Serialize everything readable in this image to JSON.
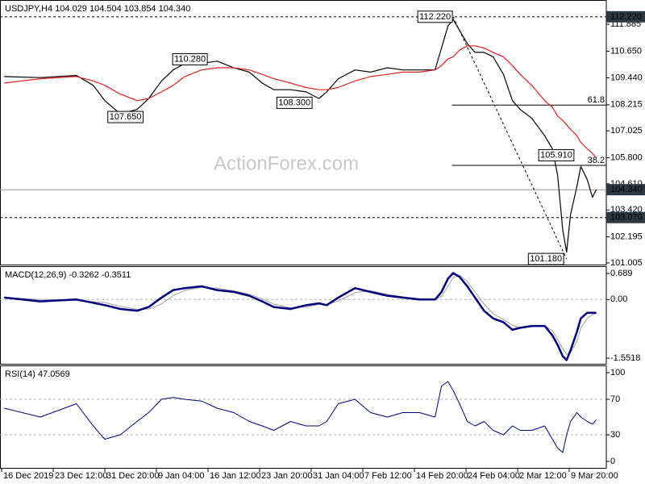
{
  "watermark": "ActionForex.com",
  "chart_data": [
    {
      "type": "line",
      "title": "USDJPY,H4 104.029 104.504 103.854 104.340",
      "x": [
        2,
        30,
        58,
        71,
        80,
        92,
        105,
        114,
        124,
        133,
        142,
        155,
        167,
        180,
        192,
        202,
        211,
        224,
        236,
        246,
        252,
        261,
        274,
        286,
        299,
        311,
        324,
        336,
        341,
        346,
        350,
        355,
        361,
        367,
        374,
        381,
        389,
        396,
        402,
        411,
        421,
        427,
        431,
        435,
        438,
        441,
        446,
        449,
        454,
        458,
        461
      ],
      "series": [
        {
          "color": "#000000",
          "line_width": 1.2,
          "values": [
            109.5,
            109.45,
            109.55,
            109.1,
            108.4,
            107.8,
            108.0,
            108.5,
            109.3,
            109.8,
            110.1,
            110.1,
            110.2,
            109.9,
            109.7,
            109.2,
            108.9,
            108.9,
            108.8,
            108.5,
            108.8,
            109.4,
            109.8,
            109.7,
            109.9,
            109.8,
            109.8,
            109.8,
            110.8,
            111.8,
            112.1,
            111.6,
            111.0,
            110.6,
            110.6,
            110.4,
            109.6,
            108.4,
            108.0,
            107.6,
            106.8,
            106.2,
            105.0,
            102.5,
            101.5,
            103.2,
            104.5,
            105.4,
            104.8,
            104.0,
            104.34
          ]
        },
        {
          "color": "#e02020",
          "line_width": 1.2,
          "values": [
            109.2,
            109.4,
            109.5,
            109.3,
            109.1,
            108.7,
            108.4,
            108.5,
            108.8,
            109.1,
            109.5,
            109.8,
            109.9,
            109.9,
            109.8,
            109.6,
            109.4,
            109.2,
            109.0,
            108.9,
            108.9,
            109.0,
            109.3,
            109.5,
            109.6,
            109.7,
            109.7,
            109.8,
            110.0,
            110.3,
            110.4,
            110.7,
            110.9,
            110.9,
            110.8,
            110.6,
            110.4,
            110.0,
            109.6,
            109.1,
            108.4,
            108.1,
            107.7,
            107.5,
            107.3,
            107.1,
            106.8,
            106.5,
            106.2,
            106.0,
            105.8
          ]
        }
      ],
      "xlim": [
        -1.25,
        468.75
      ],
      "ylim": [
        100.93,
        112.914
      ],
      "yticks": [
        111.885,
        {
          "value": 110.65,
          "label": "110.650"
        },
        {
          "value": 109.44,
          "label": "109.440"
        },
        108.215,
        107.025,
        {
          "value": 105.8,
          "label": "105.800"
        },
        {
          "value": 104.61,
          "label": "104.610"
        },
        {
          "value": 103.42,
          "label": "103.420"
        },
        102.195,
        101.005
      ],
      "annotations": [
        {
          "label": "112.220",
          "x": 336,
          "y": 112.22
        },
        {
          "label": "110.280",
          "x": 146,
          "y": 110.28
        },
        {
          "label": "107.650",
          "x": 96,
          "y": 107.65
        },
        {
          "label": "108.300",
          "x": 227,
          "y": 108.3
        },
        {
          "label": "105.910",
          "x": 430,
          "y": 105.91
        },
        {
          "label": "101.180",
          "x": 422,
          "y": 101.18
        }
      ],
      "price_lines": [
        {
          "value": 112.22,
          "label": "112.220",
          "style": "dashed"
        },
        {
          "value": 104.34,
          "label": "104.340",
          "style": "solid"
        },
        {
          "value": 103.07,
          "label": "103.070",
          "style": "dashed"
        }
      ],
      "fib_levels": [
        {
          "label": "61.8",
          "value": 108.2,
          "x_start": 349
        },
        {
          "label": "38.2",
          "value": 105.45,
          "x_start": 349
        }
      ],
      "trendline": {
        "x": [
          350,
          438
        ],
        "y": [
          112.22,
          101.18
        ]
      }
    },
    {
      "type": "line",
      "title": "MACD(12,26,9) -0.3262 -0.3511",
      "x": [
        2,
        30,
        58,
        80,
        92,
        105,
        114,
        124,
        133,
        142,
        155,
        167,
        180,
        192,
        202,
        211,
        224,
        236,
        246,
        252,
        261,
        274,
        286,
        299,
        311,
        324,
        336,
        341,
        346,
        350,
        355,
        361,
        367,
        374,
        381,
        389,
        396,
        402,
        411,
        421,
        427,
        431,
        435,
        438,
        441,
        446,
        449,
        454,
        458,
        461
      ],
      "series": [
        {
          "color": "#a0a0a0",
          "line_width": 1,
          "values": [
            0.05,
            0.0,
            -0.02,
            -0.08,
            -0.18,
            -0.26,
            -0.25,
            -0.12,
            0.1,
            0.24,
            0.32,
            0.3,
            0.23,
            0.14,
            0.02,
            -0.12,
            -0.22,
            -0.2,
            -0.13,
            -0.13,
            -0.04,
            0.18,
            0.23,
            0.14,
            0.07,
            0.02,
            0.0,
            0.08,
            0.35,
            0.58,
            0.64,
            0.47,
            0.2,
            -0.12,
            -0.38,
            -0.53,
            -0.68,
            -0.75,
            -0.72,
            -0.7,
            -0.82,
            -1.05,
            -1.3,
            -1.45,
            -1.42,
            -1.1,
            -0.75,
            -0.5,
            -0.4,
            -0.36
          ]
        },
        {
          "color": "#000080",
          "line_width": 2.5,
          "values": [
            0.05,
            -0.05,
            0.0,
            -0.15,
            -0.25,
            -0.3,
            -0.2,
            0.05,
            0.25,
            0.3,
            0.35,
            0.25,
            0.2,
            0.1,
            -0.05,
            -0.2,
            -0.25,
            -0.15,
            -0.1,
            -0.15,
            0.05,
            0.3,
            0.2,
            0.1,
            0.05,
            0.0,
            0.0,
            0.2,
            0.55,
            0.7,
            0.6,
            0.35,
            0.05,
            -0.3,
            -0.5,
            -0.6,
            -0.8,
            -0.75,
            -0.7,
            -0.7,
            -0.95,
            -1.2,
            -1.5,
            -1.6,
            -1.35,
            -0.85,
            -0.5,
            -0.35,
            -0.35,
            -0.35
          ]
        }
      ],
      "xlim": [
        -1.25,
        468.75
      ],
      "ylim": [
        -1.701,
        0.838
      ],
      "yticks": [
        0.689,
        {
          "value": 0,
          "label": "0.00"
        },
        -1.5518
      ],
      "levels": [
        0
      ]
    },
    {
      "type": "line",
      "title": "RSI(14) 47.0569",
      "x": [
        2,
        30,
        58,
        71,
        80,
        92,
        105,
        114,
        124,
        133,
        142,
        155,
        167,
        180,
        192,
        202,
        211,
        224,
        236,
        246,
        252,
        261,
        274,
        286,
        299,
        311,
        324,
        336,
        341,
        346,
        350,
        355,
        361,
        367,
        374,
        381,
        389,
        396,
        402,
        411,
        421,
        427,
        431,
        435,
        438,
        441,
        446,
        449,
        454,
        458,
        461
      ],
      "series": [
        {
          "color": "#000080",
          "line_width": 1,
          "values": [
            60,
            50,
            65,
            40,
            25,
            30,
            45,
            55,
            70,
            72,
            70,
            68,
            60,
            55,
            45,
            40,
            35,
            45,
            40,
            40,
            45,
            65,
            70,
            55,
            50,
            55,
            55,
            50,
            85,
            90,
            80,
            65,
            45,
            40,
            45,
            35,
            30,
            40,
            35,
            35,
            40,
            25,
            15,
            10,
            30,
            45,
            55,
            50,
            45,
            42,
            47
          ]
        }
      ],
      "xlim": [
        -1.25,
        468.75
      ],
      "ylim": [
        -7.3,
        106.4
      ],
      "yticks": [
        100,
        70,
        30,
        0
      ],
      "levels": [
        70,
        30
      ],
      "xticks": [
        {
          "value": 0,
          "label": "16 Dec 2019"
        },
        {
          "value": 40,
          "label": "23 Dec 12:00"
        },
        {
          "value": 80,
          "label": "31 Dec 20:00"
        },
        {
          "value": 120,
          "label": "9 Jan 04:00"
        },
        {
          "value": 160,
          "label": "16 Jan 12:00"
        },
        {
          "value": 200,
          "label": "23 Jan 20:00"
        },
        {
          "value": 240,
          "label": "31 Jan 04:00"
        },
        {
          "value": 280,
          "label": "7 Feb 12:00"
        },
        {
          "value": 320,
          "label": "14 Feb 20:00"
        },
        {
          "value": 360,
          "label": "24 Feb 04:00"
        },
        {
          "value": 400,
          "label": "2 Mar 12:00"
        },
        {
          "value": 440,
          "label": "9 Mar 20:00"
        }
      ]
    }
  ]
}
